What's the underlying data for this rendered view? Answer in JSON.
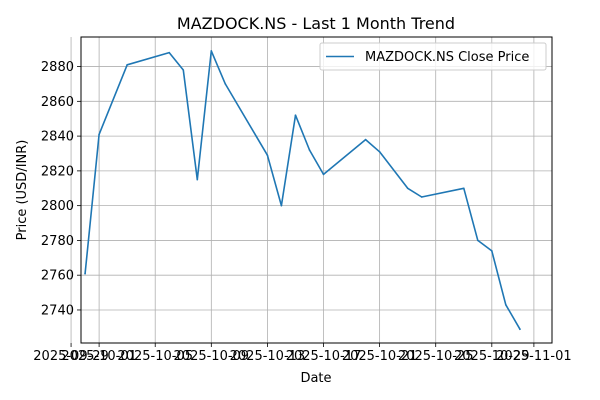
{
  "chart_data": {
    "type": "line",
    "title": "MAZDOCK.NS - Last 1 Month Trend",
    "xlabel": "Date",
    "ylabel": "Price (USD/INR)",
    "xlim": [
      "2025-09-29T17:00",
      "2025-11-02T07:00"
    ],
    "ylim": [
      2721,
      2897
    ],
    "grid": true,
    "legend_position": "top-right",
    "x_ticks": [
      "2025-09-29",
      "2025-10-01",
      "2025-10-05",
      "2025-10-09",
      "2025-10-13",
      "2025-10-17",
      "2025-10-21",
      "2025-10-25",
      "2025-10-29",
      "2025-11-01"
    ],
    "x_tick_labels": [
      "2025-09-29",
      "2025-10-01",
      "2025-10-05",
      "2025-10-09",
      "2025-10-13",
      "2025-10-17",
      "2025-10-21",
      "2025-10-25",
      "2025-10-29",
      "2025-11-01"
    ],
    "y_ticks": [
      2740,
      2760,
      2780,
      2800,
      2820,
      2840,
      2860,
      2880
    ],
    "series": [
      {
        "name": "MAZDOCK.NS Close Price",
        "color": "#1f77b4",
        "x": [
          "2025-09-30",
          "2025-10-01",
          "2025-10-03",
          "2025-10-06",
          "2025-10-07",
          "2025-10-08",
          "2025-10-09",
          "2025-10-10",
          "2025-10-13",
          "2025-10-14",
          "2025-10-15",
          "2025-10-16",
          "2025-10-17",
          "2025-10-20",
          "2025-10-21",
          "2025-10-23",
          "2025-10-24",
          "2025-10-27",
          "2025-10-28",
          "2025-10-29",
          "2025-10-30",
          "2025-10-31"
        ],
        "y": [
          2761,
          2841,
          2881,
          2888,
          2878,
          2815,
          2889,
          2870,
          2829,
          2800,
          2852,
          2832,
          2818,
          2838,
          2831,
          2810,
          2805,
          2810,
          2780,
          2774,
          2743,
          2729
        ]
      }
    ]
  }
}
